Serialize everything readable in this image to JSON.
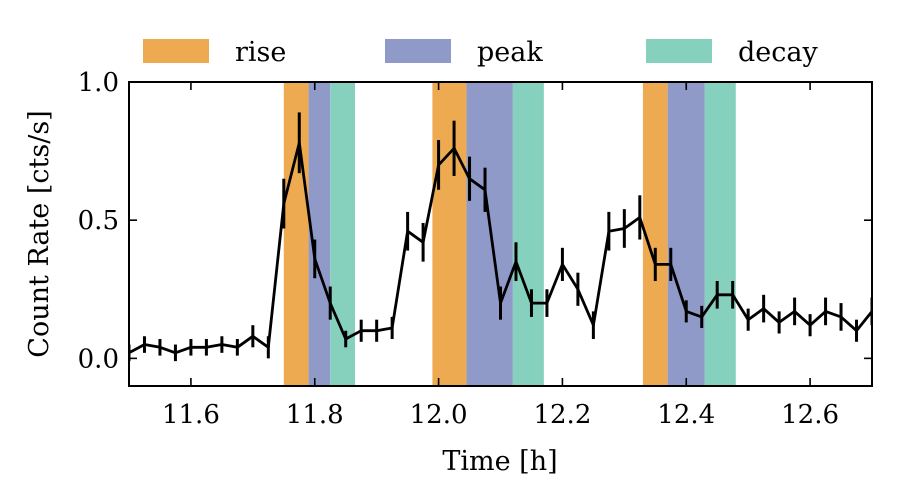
{
  "chart_data": {
    "type": "line",
    "xlabel": "Time [h]",
    "ylabel": "Count Rate [cts/s]",
    "xlim": [
      11.5,
      12.7
    ],
    "ylim": [
      -0.1,
      1.0
    ],
    "xticks": [
      11.6,
      11.8,
      12.0,
      12.2,
      12.4,
      12.6
    ],
    "xtick_labels": [
      "11.6",
      "11.8",
      "12.0",
      "12.2",
      "12.4",
      "12.6"
    ],
    "yticks": [
      0.0,
      0.5,
      1.0
    ],
    "ytick_labels": [
      "0.0",
      "0.5",
      "1.0"
    ],
    "grid": false,
    "legend_position": "top, outside plot, single row",
    "legend": [
      {
        "label": "rise",
        "color": "#eeaa50"
      },
      {
        "label": "peak",
        "color": "#8f9ac9"
      },
      {
        "label": "decay",
        "color": "#86d1bd"
      }
    ],
    "phases": [
      {
        "phase": "rise",
        "x0": 11.75,
        "x1": 11.79
      },
      {
        "phase": "peak",
        "x0": 11.79,
        "x1": 11.825
      },
      {
        "phase": "decay",
        "x0": 11.825,
        "x1": 11.865
      },
      {
        "phase": "rise",
        "x0": 11.99,
        "x1": 12.045
      },
      {
        "phase": "peak",
        "x0": 12.045,
        "x1": 12.12
      },
      {
        "phase": "decay",
        "x0": 12.12,
        "x1": 12.17
      },
      {
        "phase": "rise",
        "x0": 12.33,
        "x1": 12.37
      },
      {
        "phase": "peak",
        "x0": 12.37,
        "x1": 12.43
      },
      {
        "phase": "decay",
        "x0": 12.43,
        "x1": 12.48
      }
    ],
    "series": [
      {
        "color": "#000000",
        "x": [
          11.5,
          11.525,
          11.55,
          11.575,
          11.6,
          11.625,
          11.65,
          11.675,
          11.7,
          11.725,
          11.75,
          11.775,
          11.8,
          11.825,
          11.85,
          11.875,
          11.9,
          11.925,
          11.95,
          11.975,
          12.0,
          12.025,
          12.05,
          12.075,
          12.1,
          12.125,
          12.15,
          12.175,
          12.2,
          12.225,
          12.25,
          12.275,
          12.3,
          12.325,
          12.35,
          12.375,
          12.4,
          12.425,
          12.45,
          12.475,
          12.5,
          12.525,
          12.55,
          12.575,
          12.6,
          12.625,
          12.65,
          12.675,
          12.7
        ],
        "y": [
          0.02,
          0.05,
          0.04,
          0.02,
          0.04,
          0.04,
          0.05,
          0.04,
          0.08,
          0.04,
          0.56,
          0.78,
          0.36,
          0.2,
          0.07,
          0.1,
          0.1,
          0.11,
          0.46,
          0.42,
          0.7,
          0.76,
          0.65,
          0.61,
          0.2,
          0.35,
          0.2,
          0.2,
          0.34,
          0.25,
          0.12,
          0.46,
          0.47,
          0.51,
          0.34,
          0.34,
          0.17,
          0.15,
          0.23,
          0.23,
          0.14,
          0.18,
          0.13,
          0.17,
          0.12,
          0.17,
          0.15,
          0.1,
          0.17
        ],
        "err": [
          0.03,
          0.03,
          0.03,
          0.03,
          0.03,
          0.03,
          0.03,
          0.03,
          0.04,
          0.04,
          0.09,
          0.11,
          0.07,
          0.06,
          0.03,
          0.04,
          0.04,
          0.04,
          0.07,
          0.07,
          0.09,
          0.1,
          0.08,
          0.08,
          0.06,
          0.07,
          0.05,
          0.05,
          0.06,
          0.06,
          0.05,
          0.07,
          0.07,
          0.08,
          0.06,
          0.06,
          0.04,
          0.04,
          0.05,
          0.05,
          0.04,
          0.05,
          0.04,
          0.05,
          0.04,
          0.05,
          0.05,
          0.04,
          0.05
        ]
      }
    ]
  }
}
